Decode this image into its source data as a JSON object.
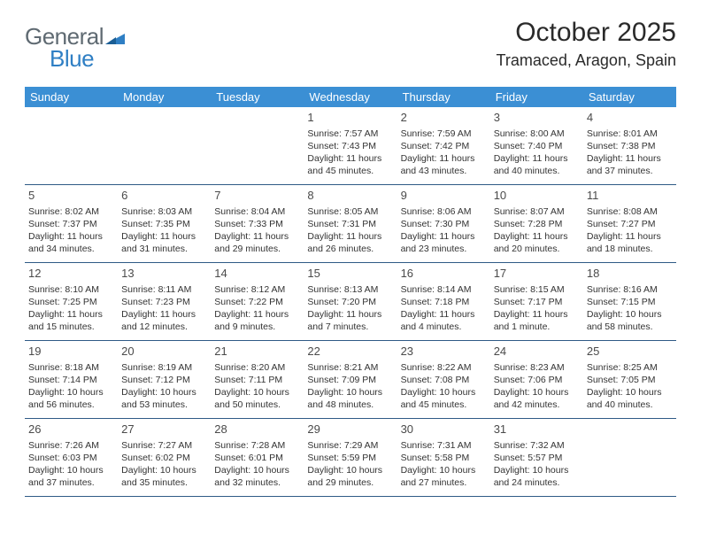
{
  "logo": {
    "word1": "General",
    "word2": "Blue"
  },
  "title": "October 2025",
  "location": "Tramaced, Aragon, Spain",
  "colors": {
    "header_bg": "#3b8fd4",
    "header_text": "#ffffff",
    "border": "#2f5a86",
    "logo_gray": "#5f6a72",
    "logo_blue": "#2f7fc4",
    "text": "#333333"
  },
  "daynames": [
    "Sunday",
    "Monday",
    "Tuesday",
    "Wednesday",
    "Thursday",
    "Friday",
    "Saturday"
  ],
  "weeks": [
    [
      null,
      null,
      null,
      {
        "n": "1",
        "sr": "Sunrise: 7:57 AM",
        "ss": "Sunset: 7:43 PM",
        "d1": "Daylight: 11 hours",
        "d2": "and 45 minutes."
      },
      {
        "n": "2",
        "sr": "Sunrise: 7:59 AM",
        "ss": "Sunset: 7:42 PM",
        "d1": "Daylight: 11 hours",
        "d2": "and 43 minutes."
      },
      {
        "n": "3",
        "sr": "Sunrise: 8:00 AM",
        "ss": "Sunset: 7:40 PM",
        "d1": "Daylight: 11 hours",
        "d2": "and 40 minutes."
      },
      {
        "n": "4",
        "sr": "Sunrise: 8:01 AM",
        "ss": "Sunset: 7:38 PM",
        "d1": "Daylight: 11 hours",
        "d2": "and 37 minutes."
      }
    ],
    [
      {
        "n": "5",
        "sr": "Sunrise: 8:02 AM",
        "ss": "Sunset: 7:37 PM",
        "d1": "Daylight: 11 hours",
        "d2": "and 34 minutes."
      },
      {
        "n": "6",
        "sr": "Sunrise: 8:03 AM",
        "ss": "Sunset: 7:35 PM",
        "d1": "Daylight: 11 hours",
        "d2": "and 31 minutes."
      },
      {
        "n": "7",
        "sr": "Sunrise: 8:04 AM",
        "ss": "Sunset: 7:33 PM",
        "d1": "Daylight: 11 hours",
        "d2": "and 29 minutes."
      },
      {
        "n": "8",
        "sr": "Sunrise: 8:05 AM",
        "ss": "Sunset: 7:31 PM",
        "d1": "Daylight: 11 hours",
        "d2": "and 26 minutes."
      },
      {
        "n": "9",
        "sr": "Sunrise: 8:06 AM",
        "ss": "Sunset: 7:30 PM",
        "d1": "Daylight: 11 hours",
        "d2": "and 23 minutes."
      },
      {
        "n": "10",
        "sr": "Sunrise: 8:07 AM",
        "ss": "Sunset: 7:28 PM",
        "d1": "Daylight: 11 hours",
        "d2": "and 20 minutes."
      },
      {
        "n": "11",
        "sr": "Sunrise: 8:08 AM",
        "ss": "Sunset: 7:27 PM",
        "d1": "Daylight: 11 hours",
        "d2": "and 18 minutes."
      }
    ],
    [
      {
        "n": "12",
        "sr": "Sunrise: 8:10 AM",
        "ss": "Sunset: 7:25 PM",
        "d1": "Daylight: 11 hours",
        "d2": "and 15 minutes."
      },
      {
        "n": "13",
        "sr": "Sunrise: 8:11 AM",
        "ss": "Sunset: 7:23 PM",
        "d1": "Daylight: 11 hours",
        "d2": "and 12 minutes."
      },
      {
        "n": "14",
        "sr": "Sunrise: 8:12 AM",
        "ss": "Sunset: 7:22 PM",
        "d1": "Daylight: 11 hours",
        "d2": "and 9 minutes."
      },
      {
        "n": "15",
        "sr": "Sunrise: 8:13 AM",
        "ss": "Sunset: 7:20 PM",
        "d1": "Daylight: 11 hours",
        "d2": "and 7 minutes."
      },
      {
        "n": "16",
        "sr": "Sunrise: 8:14 AM",
        "ss": "Sunset: 7:18 PM",
        "d1": "Daylight: 11 hours",
        "d2": "and 4 minutes."
      },
      {
        "n": "17",
        "sr": "Sunrise: 8:15 AM",
        "ss": "Sunset: 7:17 PM",
        "d1": "Daylight: 11 hours",
        "d2": "and 1 minute."
      },
      {
        "n": "18",
        "sr": "Sunrise: 8:16 AM",
        "ss": "Sunset: 7:15 PM",
        "d1": "Daylight: 10 hours",
        "d2": "and 58 minutes."
      }
    ],
    [
      {
        "n": "19",
        "sr": "Sunrise: 8:18 AM",
        "ss": "Sunset: 7:14 PM",
        "d1": "Daylight: 10 hours",
        "d2": "and 56 minutes."
      },
      {
        "n": "20",
        "sr": "Sunrise: 8:19 AM",
        "ss": "Sunset: 7:12 PM",
        "d1": "Daylight: 10 hours",
        "d2": "and 53 minutes."
      },
      {
        "n": "21",
        "sr": "Sunrise: 8:20 AM",
        "ss": "Sunset: 7:11 PM",
        "d1": "Daylight: 10 hours",
        "d2": "and 50 minutes."
      },
      {
        "n": "22",
        "sr": "Sunrise: 8:21 AM",
        "ss": "Sunset: 7:09 PM",
        "d1": "Daylight: 10 hours",
        "d2": "and 48 minutes."
      },
      {
        "n": "23",
        "sr": "Sunrise: 8:22 AM",
        "ss": "Sunset: 7:08 PM",
        "d1": "Daylight: 10 hours",
        "d2": "and 45 minutes."
      },
      {
        "n": "24",
        "sr": "Sunrise: 8:23 AM",
        "ss": "Sunset: 7:06 PM",
        "d1": "Daylight: 10 hours",
        "d2": "and 42 minutes."
      },
      {
        "n": "25",
        "sr": "Sunrise: 8:25 AM",
        "ss": "Sunset: 7:05 PM",
        "d1": "Daylight: 10 hours",
        "d2": "and 40 minutes."
      }
    ],
    [
      {
        "n": "26",
        "sr": "Sunrise: 7:26 AM",
        "ss": "Sunset: 6:03 PM",
        "d1": "Daylight: 10 hours",
        "d2": "and 37 minutes."
      },
      {
        "n": "27",
        "sr": "Sunrise: 7:27 AM",
        "ss": "Sunset: 6:02 PM",
        "d1": "Daylight: 10 hours",
        "d2": "and 35 minutes."
      },
      {
        "n": "28",
        "sr": "Sunrise: 7:28 AM",
        "ss": "Sunset: 6:01 PM",
        "d1": "Daylight: 10 hours",
        "d2": "and 32 minutes."
      },
      {
        "n": "29",
        "sr": "Sunrise: 7:29 AM",
        "ss": "Sunset: 5:59 PM",
        "d1": "Daylight: 10 hours",
        "d2": "and 29 minutes."
      },
      {
        "n": "30",
        "sr": "Sunrise: 7:31 AM",
        "ss": "Sunset: 5:58 PM",
        "d1": "Daylight: 10 hours",
        "d2": "and 27 minutes."
      },
      {
        "n": "31",
        "sr": "Sunrise: 7:32 AM",
        "ss": "Sunset: 5:57 PM",
        "d1": "Daylight: 10 hours",
        "d2": "and 24 minutes."
      },
      null
    ]
  ]
}
